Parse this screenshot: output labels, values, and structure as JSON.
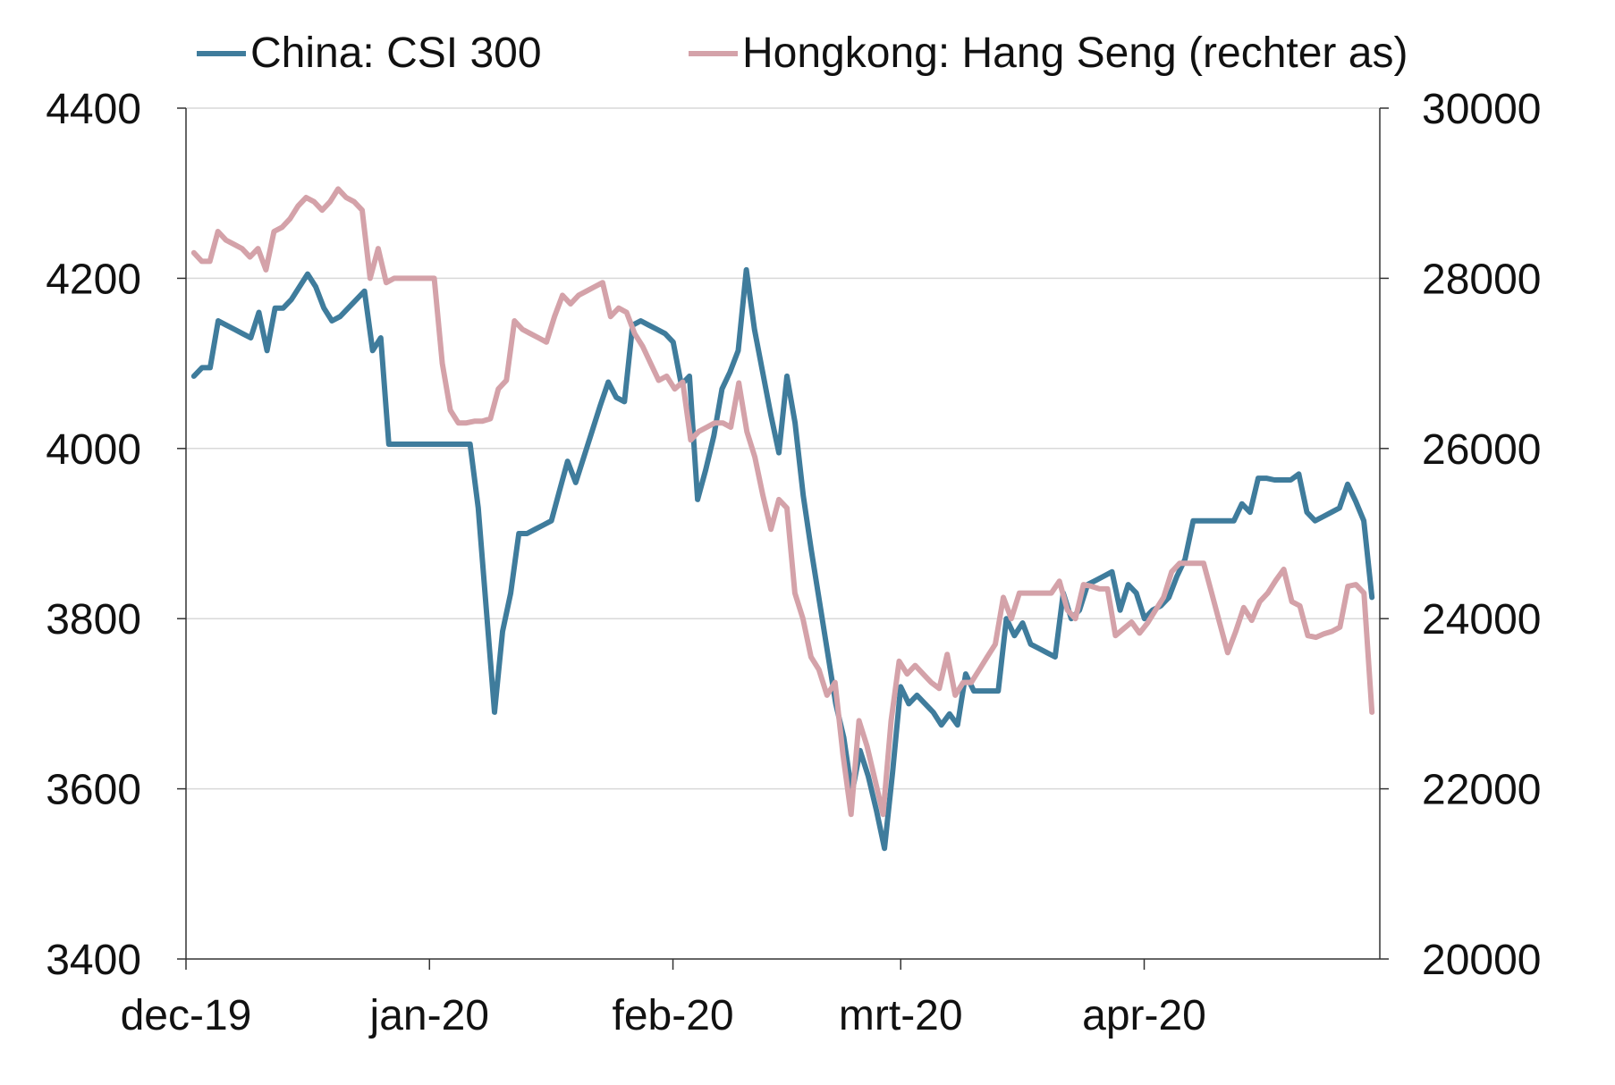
{
  "chart_data": {
    "type": "line",
    "x_ticks": [
      "dec-19",
      "jan-20",
      "feb-20",
      "mrt-20",
      "apr-20"
    ],
    "left_axis": {
      "ylim": [
        3400,
        4400
      ],
      "ticks": [
        "3400",
        "3600",
        "3800",
        "4000",
        "4200",
        "4400"
      ]
    },
    "right_axis": {
      "ylim": [
        20000,
        30000
      ],
      "ticks": [
        "20000",
        "22000",
        "24000",
        "26000",
        "28000",
        "30000"
      ]
    },
    "grid": true,
    "legend_position": "top",
    "series": [
      {
        "name": "China: CSI 300",
        "axis": "left",
        "color": "#3f7c9c",
        "x_range": [
          "2019-12-02",
          "2020-04-30"
        ],
        "values": [
          4085,
          4095,
          4095,
          4150,
          4145,
          4140,
          4135,
          4130,
          4160,
          4115,
          4165,
          4165,
          4175,
          4190,
          4205,
          4190,
          4165,
          4150,
          4155,
          4165,
          4175,
          4185,
          4115,
          4130,
          4005,
          4005,
          4005,
          4005,
          4005,
          4005,
          4005,
          4005,
          4005,
          4005,
          4005,
          3930,
          3810,
          3690,
          3785,
          3830,
          3900,
          3900,
          3905,
          3910,
          3915,
          3950,
          3985,
          3960,
          3990,
          4020,
          4050,
          4078,
          4060,
          4055,
          4145,
          4150,
          4145,
          4140,
          4135,
          4125,
          4075,
          4085,
          3940,
          3975,
          4015,
          4070,
          4090,
          4115,
          4210,
          4140,
          4090,
          4040,
          3995,
          4085,
          4030,
          3945,
          3880,
          3820,
          3760,
          3700,
          3660,
          3595,
          3645,
          3615,
          3575,
          3530,
          3620,
          3720,
          3700,
          3710,
          3700,
          3690,
          3675,
          3688,
          3675,
          3735,
          3715,
          3715,
          3715,
          3715,
          3800,
          3780,
          3795,
          3770,
          3765,
          3760,
          3755,
          3830,
          3800,
          3810,
          3840,
          3845,
          3850,
          3855,
          3810,
          3840,
          3830,
          3800,
          3810,
          3815,
          3825,
          3850,
          3870,
          3915,
          3915,
          3915,
          3915,
          3915,
          3915,
          3935,
          3925,
          3965,
          3965,
          3963,
          3963,
          3963,
          3970,
          3925,
          3915,
          3920,
          3925,
          3930,
          3958,
          3938,
          3915,
          3825
        ]
      },
      {
        "name": "Hongkong: Hang Seng (rechter as)",
        "axis": "right",
        "color": "#d4a2a9",
        "x_range": [
          "2019-12-02",
          "2020-04-30"
        ],
        "values": [
          28300,
          28200,
          28200,
          28550,
          28450,
          28400,
          28350,
          28250,
          28350,
          28100,
          28550,
          28600,
          28700,
          28850,
          28950,
          28900,
          28800,
          28900,
          29050,
          28950,
          28900,
          28800,
          28000,
          28350,
          27950,
          28000,
          28000,
          28000,
          28000,
          28000,
          28000,
          27000,
          26450,
          26300,
          26300,
          26320,
          26320,
          26350,
          26700,
          26800,
          27500,
          27400,
          27350,
          27300,
          27250,
          27550,
          27800,
          27700,
          27800,
          27850,
          27900,
          27950,
          27550,
          27650,
          27600,
          27350,
          27200,
          27000,
          26800,
          26850,
          26700,
          26780,
          26100,
          26200,
          26250,
          26300,
          26300,
          26250,
          26770,
          26200,
          25900,
          25450,
          25050,
          25400,
          25300,
          24300,
          24000,
          23550,
          23400,
          23100,
          23250,
          22400,
          21700,
          22800,
          22500,
          22100,
          21700,
          22800,
          23500,
          23350,
          23450,
          23350,
          23250,
          23180,
          23580,
          23100,
          23250,
          23250,
          23400,
          23550,
          23700,
          24250,
          24000,
          24300,
          24300,
          24300,
          24300,
          24300,
          24440,
          24100,
          24000,
          24400,
          24380,
          24350,
          24350,
          23800,
          23880,
          23960,
          23830,
          23950,
          24100,
          24250,
          24550,
          24650,
          24650,
          24650,
          24650,
          24300,
          23950,
          23600,
          23850,
          24130,
          23980,
          24200,
          24300,
          24450,
          24580,
          24200,
          24150,
          23800,
          23780,
          23820,
          23850,
          23900,
          24380,
          24400,
          24300,
          22900
        ]
      }
    ]
  }
}
